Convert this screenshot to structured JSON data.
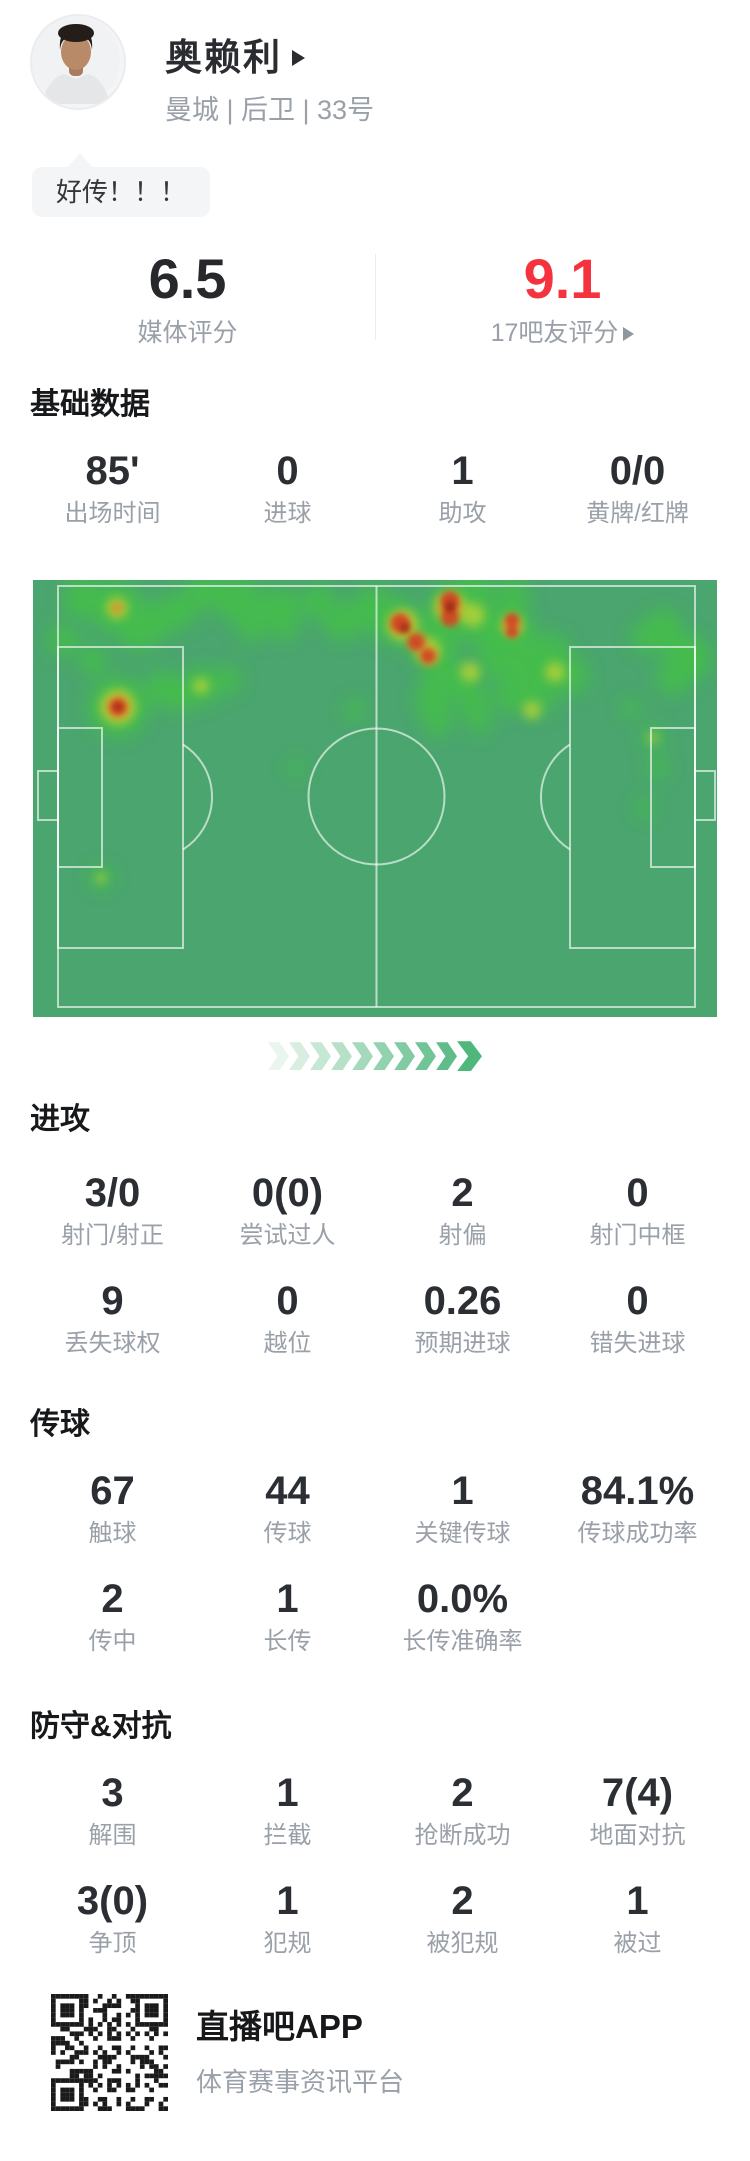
{
  "header": {
    "player_name": "奥赖利",
    "team_position": "曼城 | 后卫 | 33号",
    "bubble_text": "好传！！！"
  },
  "ratings": {
    "media_value": "6.5",
    "media_label": "媒体评分",
    "fans_value": "9.1",
    "fans_label": "17吧友评分"
  },
  "sections": {
    "basic": {
      "title": "基础数据",
      "stats": [
        {
          "value": "85'",
          "label": "出场时间"
        },
        {
          "value": "0",
          "label": "进球"
        },
        {
          "value": "1",
          "label": "助攻"
        },
        {
          "value": "0/0",
          "label": "黄牌/红牌"
        }
      ]
    },
    "attack": {
      "title": "进攻",
      "stats": [
        {
          "value": "3/0",
          "label": "射门/射正"
        },
        {
          "value": "0(0)",
          "label": "尝试过人"
        },
        {
          "value": "2",
          "label": "射偏"
        },
        {
          "value": "0",
          "label": "射门中框"
        },
        {
          "value": "9",
          "label": "丢失球权"
        },
        {
          "value": "0",
          "label": "越位"
        },
        {
          "value": "0.26",
          "label": "预期进球"
        },
        {
          "value": "0",
          "label": "错失进球"
        }
      ]
    },
    "passing": {
      "title": "传球",
      "stats": [
        {
          "value": "67",
          "label": "触球"
        },
        {
          "value": "44",
          "label": "传球"
        },
        {
          "value": "1",
          "label": "关键传球"
        },
        {
          "value": "84.1%",
          "label": "传球成功率"
        },
        {
          "value": "2",
          "label": "传中"
        },
        {
          "value": "1",
          "label": "长传"
        },
        {
          "value": "0.0%",
          "label": "长传准确率"
        }
      ]
    },
    "defense": {
      "title": "防守&对抗",
      "stats": [
        {
          "value": "3",
          "label": "解围"
        },
        {
          "value": "1",
          "label": "拦截"
        },
        {
          "value": "2",
          "label": "抢断成功"
        },
        {
          "value": "7(4)",
          "label": "地面对抗"
        },
        {
          "value": "3(0)",
          "label": "争顶"
        },
        {
          "value": "1",
          "label": "犯规"
        },
        {
          "value": "2",
          "label": "被犯规"
        },
        {
          "value": "1",
          "label": "被过"
        }
      ]
    }
  },
  "footer": {
    "app_name": "直播吧APP",
    "tagline": "体育赛事资讯平台"
  },
  "colors": {
    "accent_red": "#f5333f",
    "value_text": "#2b2e33",
    "label_text": "#9aa0a8",
    "pitch_green": "#4aa56e",
    "pitch_line": "rgba(255,255,255,0.62)",
    "heat_green": "#3fd12e",
    "heat_yellow": "#cdd832",
    "heat_orange": "#e2862b",
    "heat_red": "#d03a24",
    "heat_dark_red": "#9a2716",
    "chevron_start": "#e9f5ee",
    "chevron_end": "#4fb67c"
  },
  "chevrons": {
    "count": 10
  },
  "heatmap": {
    "description": "player activity heatmap on horizontal football pitch, hot zone along top flank",
    "spots": {
      "green": [
        [
          50,
          18,
          20
        ],
        [
          84,
          28,
          26
        ],
        [
          120,
          42,
          20
        ],
        [
          145,
          30,
          18
        ],
        [
          30,
          60,
          15
        ],
        [
          60,
          80,
          14
        ],
        [
          105,
          55,
          16
        ],
        [
          171,
          12,
          18
        ],
        [
          205,
          20,
          22
        ],
        [
          246,
          28,
          20
        ],
        [
          285,
          22,
          17
        ],
        [
          307,
          45,
          15
        ],
        [
          219,
          48,
          14
        ],
        [
          252,
          47,
          13
        ],
        [
          315,
          40,
          18
        ],
        [
          340,
          25,
          18
        ],
        [
          130,
          108,
          17
        ],
        [
          168,
          106,
          19
        ],
        [
          148,
          118,
          14
        ],
        [
          195,
          100,
          13
        ],
        [
          85,
          127,
          30
        ],
        [
          68,
          298,
          11
        ],
        [
          360,
          40,
          24
        ],
        [
          400,
          60,
          26
        ],
        [
          420,
          30,
          26
        ],
        [
          440,
          12,
          20
        ],
        [
          480,
          15,
          16
        ],
        [
          450,
          45,
          22
        ],
        [
          470,
          60,
          20
        ],
        [
          480,
          40,
          18
        ],
        [
          410,
          95,
          20
        ],
        [
          400,
          120,
          18
        ],
        [
          405,
          142,
          14
        ],
        [
          430,
          100,
          16
        ],
        [
          440,
          120,
          16
        ],
        [
          447,
          142,
          12
        ],
        [
          467,
          77,
          22
        ],
        [
          480,
          115,
          18
        ],
        [
          503,
          90,
          24
        ],
        [
          505,
          120,
          16
        ],
        [
          535,
          95,
          20
        ],
        [
          488,
          60,
          18
        ],
        [
          520,
          70,
          16
        ],
        [
          322,
          130,
          10
        ],
        [
          263,
          188,
          8
        ],
        [
          630,
          50,
          20
        ],
        [
          655,
          78,
          22
        ],
        [
          640,
          98,
          16
        ],
        [
          612,
          58,
          14
        ],
        [
          598,
          128,
          9
        ],
        [
          620,
          158,
          11
        ],
        [
          625,
          188,
          10
        ],
        [
          612,
          228,
          9
        ]
      ],
      "yellow": [
        [
          84,
          28,
          11
        ],
        [
          85,
          127,
          18
        ],
        [
          370,
          45,
          16
        ],
        [
          395,
          70,
          13
        ],
        [
          417,
          27,
          16
        ],
        [
          440,
          35,
          12
        ],
        [
          479,
          45,
          11
        ],
        [
          437,
          92,
          10
        ],
        [
          499,
          130,
          9
        ],
        [
          522,
          92,
          10
        ],
        [
          168,
          106,
          8
        ],
        [
          68,
          298,
          5
        ],
        [
          620,
          158,
          5
        ]
      ],
      "orange": [
        [
          85,
          127,
          12
        ],
        [
          368,
          44,
          11
        ],
        [
          384,
          62,
          10
        ],
        [
          396,
          76,
          9
        ],
        [
          417,
          27,
          12
        ],
        [
          479,
          46,
          9
        ],
        [
          84,
          28,
          6
        ]
      ],
      "red": [
        [
          85,
          127,
          8
        ],
        [
          367,
          43,
          9
        ],
        [
          383,
          62,
          8
        ],
        [
          395,
          76,
          7
        ],
        [
          417,
          20,
          9
        ],
        [
          417,
          38,
          9
        ],
        [
          479,
          40,
          7
        ],
        [
          479,
          52,
          6
        ]
      ],
      "dark": [
        [
          417,
          27,
          6
        ],
        [
          372,
          48,
          5
        ],
        [
          85,
          127,
          4
        ]
      ]
    }
  }
}
